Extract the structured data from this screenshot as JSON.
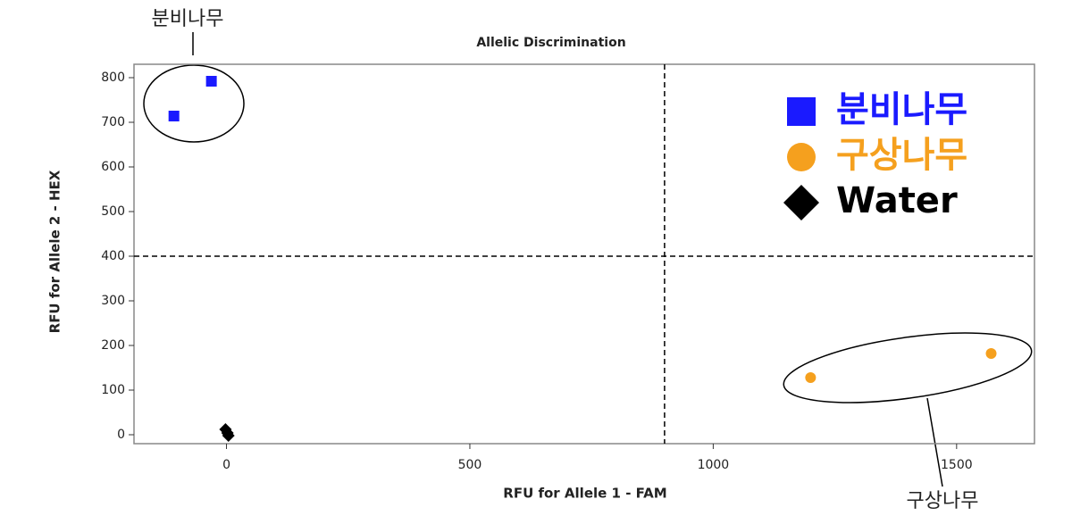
{
  "chart_data": {
    "type": "scatter",
    "title": "Allelic Discrimination",
    "x_label": "RFU for Allele 1 - FAM",
    "y_label": "RFU for Allele 2 - HEX",
    "xlim": [
      -190,
      1660
    ],
    "ylim": [
      -20,
      830
    ],
    "xticks": [
      0,
      500,
      1000,
      1500
    ],
    "yticks": [
      0,
      100,
      200,
      300,
      400,
      500,
      600,
      700,
      800
    ],
    "thresholds": {
      "x": 900,
      "y": 400
    },
    "series": [
      {
        "name": "분비나무",
        "color": "#1a1aff",
        "marker": "square",
        "x": [
          -108,
          -31
        ],
        "values": [
          714,
          792
        ]
      },
      {
        "name": "구상나무",
        "color": "#f5a01e",
        "marker": "circle",
        "x": [
          1200,
          1571
        ],
        "values": [
          128,
          182
        ]
      },
      {
        "name": "Water",
        "color": "#000000",
        "marker": "diamond",
        "x": [
          -2,
          2,
          4
        ],
        "values": [
          12,
          4,
          -2
        ]
      }
    ],
    "annotations": [
      "분비나무",
      "구상나무"
    ]
  }
}
